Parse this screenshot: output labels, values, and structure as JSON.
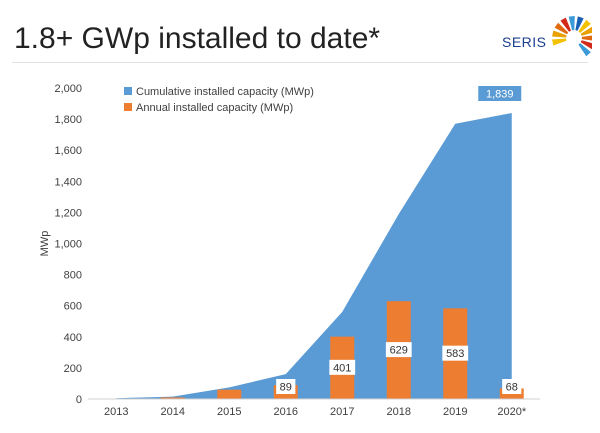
{
  "slide": {
    "title": "1.8+ GWp installed to date*"
  },
  "logo": {
    "text": "SERIS",
    "colors": [
      "#f2c200",
      "#e8a100",
      "#e06a10",
      "#d12a1a",
      "#3a9ad9",
      "#1a5fb4"
    ]
  },
  "colors": {
    "cumulative": "#5b9bd5",
    "annual": "#ed7d31",
    "callout": "#5b9bd5"
  },
  "chart_data": {
    "type": "bar",
    "categories": [
      "2013",
      "2014",
      "2015",
      "2016",
      "2017",
      "2018",
      "2019",
      "2020*"
    ],
    "ylabel": "MWp",
    "ylim": [
      0,
      2000
    ],
    "yticks": [
      "0",
      "200",
      "400",
      "600",
      "800",
      "1,000",
      "1,200",
      "1,400",
      "1,600",
      "1,800",
      "2,000"
    ],
    "grid": false,
    "legend_position": "top-left",
    "series": [
      {
        "name": "Cumulative installed capacity (MWp)",
        "chart_type": "area",
        "values": [
          5,
          15,
          75,
          160,
          560,
          1190,
          1770,
          1839
        ]
      },
      {
        "name": "Annual installed capacity (MWp)",
        "chart_type": "bar",
        "values": [
          3,
          10,
          60,
          89,
          401,
          629,
          583,
          68
        ],
        "data_labels": [
          "",
          "",
          "",
          "89",
          "401",
          "629",
          "583",
          "68"
        ]
      }
    ],
    "annotations": [
      {
        "text": "1,839",
        "category": "2020*",
        "value": 1839
      }
    ]
  }
}
